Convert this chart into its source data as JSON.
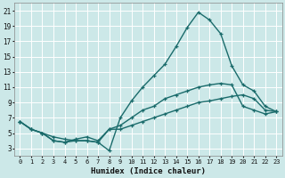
{
  "xlabel": "Humidex (Indice chaleur)",
  "bg_color": "#cce8e8",
  "grid_color": "#ffffff",
  "line_color": "#1a6b6b",
  "xlim": [
    -0.5,
    23.5
  ],
  "ylim": [
    2,
    22
  ],
  "xticks": [
    0,
    1,
    2,
    3,
    4,
    5,
    6,
    7,
    8,
    9,
    10,
    11,
    12,
    13,
    14,
    15,
    16,
    17,
    18,
    19,
    20,
    21,
    22,
    23
  ],
  "yticks": [
    3,
    5,
    7,
    9,
    11,
    13,
    15,
    17,
    19,
    21
  ],
  "line1_x": [
    0,
    1,
    2,
    3,
    4,
    5,
    6,
    7,
    8,
    9,
    10,
    11,
    12,
    13,
    14,
    15,
    16,
    17,
    18,
    19,
    20,
    21,
    22,
    23
  ],
  "line1_y": [
    6.5,
    5.5,
    5.0,
    4.5,
    4.2,
    4.0,
    4.0,
    3.8,
    2.7,
    7.0,
    9.2,
    11.0,
    12.5,
    14.0,
    16.3,
    18.8,
    20.8,
    19.8,
    18.0,
    13.8,
    11.3,
    10.5,
    8.5,
    7.8
  ],
  "line2_x": [
    0,
    1,
    2,
    3,
    4,
    5,
    6,
    7,
    8,
    9,
    10,
    11,
    12,
    13,
    14,
    15,
    16,
    17,
    18,
    19,
    20,
    21,
    22,
    23
  ],
  "line2_y": [
    6.5,
    5.5,
    5.0,
    4.0,
    3.8,
    4.0,
    4.0,
    3.8,
    5.5,
    6.0,
    7.0,
    8.0,
    8.5,
    9.5,
    10.0,
    10.5,
    11.0,
    11.3,
    11.5,
    11.3,
    8.5,
    8.0,
    7.5,
    7.8
  ],
  "line3_x": [
    0,
    1,
    2,
    3,
    4,
    5,
    6,
    7,
    8,
    9,
    10,
    11,
    12,
    13,
    14,
    15,
    16,
    17,
    18,
    19,
    20,
    21,
    22,
    23
  ],
  "line3_y": [
    6.5,
    5.5,
    5.0,
    4.0,
    3.8,
    4.2,
    4.5,
    4.0,
    5.5,
    5.5,
    6.0,
    6.5,
    7.0,
    7.5,
    8.0,
    8.5,
    9.0,
    9.2,
    9.5,
    9.8,
    10.0,
    9.5,
    8.0,
    7.8
  ],
  "marker_size": 3.5,
  "linewidth": 1.0
}
